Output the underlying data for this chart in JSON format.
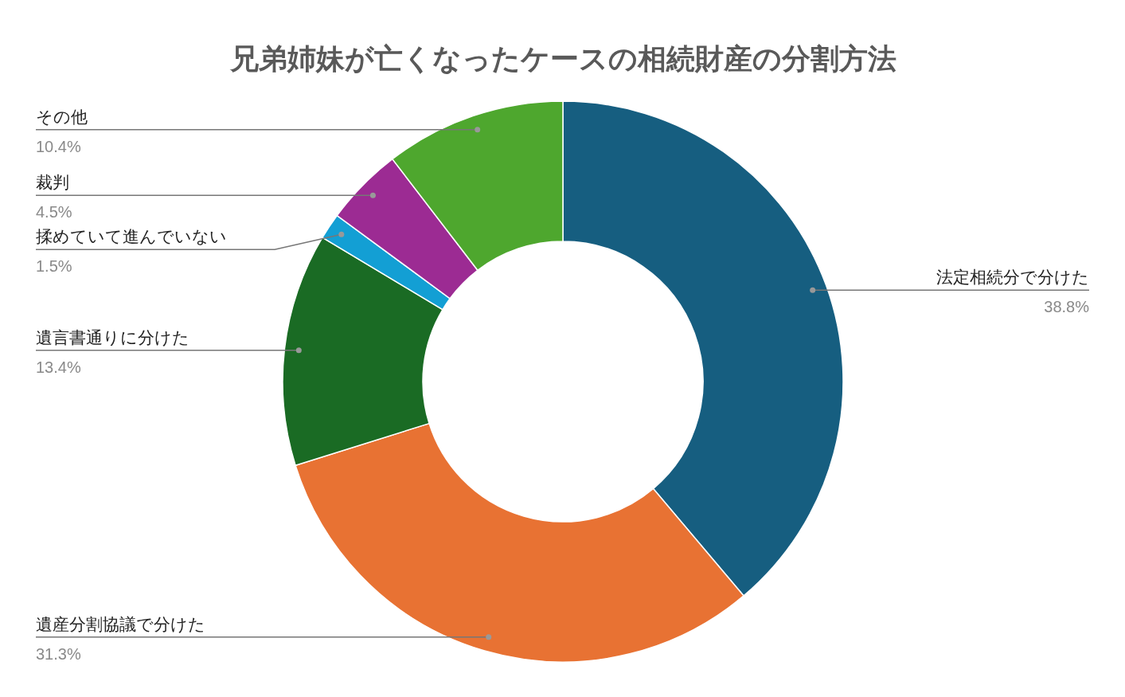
{
  "chart_data": {
    "type": "donut",
    "title": "兄弟姉妹が亡くなったケースの相続財産の分割方法",
    "categories": [
      "法定相続分で分けた",
      "遺産分割協議で分けた",
      "遺言書通りに分けた",
      "揉めていて進んでいない",
      "裁判",
      "その他"
    ],
    "values": [
      38.8,
      31.3,
      13.4,
      1.5,
      4.5,
      10.4
    ],
    "colors": [
      "#165e80",
      "#e87233",
      "#1a6b24",
      "#139fd4",
      "#9c2b93",
      "#4ea72e"
    ],
    "value_labels": [
      "38.8%",
      "31.3%",
      "13.4%",
      "1.5%",
      "4.5%",
      "10.4%"
    ]
  }
}
